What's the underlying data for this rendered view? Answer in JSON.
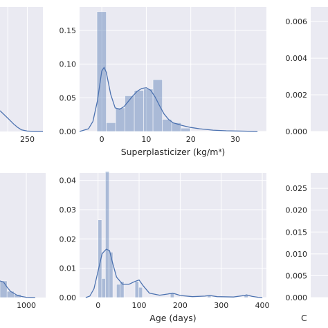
{
  "chart_data": [
    {
      "type": "histogram-kde",
      "panel": "top-left (cropped)",
      "xlabel": "",
      "ylabel": "",
      "xlim": [
        180,
        290
      ],
      "ylim": [
        0,
        0.015
      ],
      "xticks": [
        {
          "value": 250,
          "label": "250"
        }
      ],
      "yticks": [],
      "bins": [],
      "kde": [
        [
          180,
          0.0025
        ],
        [
          200,
          0.0016
        ],
        [
          215,
          0.0009
        ],
        [
          225,
          0.0005
        ],
        [
          235,
          0.0002
        ],
        [
          250,
          5e-05
        ],
        [
          270,
          0.0
        ],
        [
          290,
          0.0
        ]
      ]
    },
    {
      "type": "histogram-kde",
      "panel": "top-center",
      "xlabel": "Superplasticizer (kg/m³)",
      "ylabel": "",
      "xlim": [
        -5,
        37
      ],
      "ylim": [
        0,
        0.185
      ],
      "xticks": [
        {
          "value": 0,
          "label": "0"
        },
        {
          "value": 10,
          "label": "10"
        },
        {
          "value": 20,
          "label": "20"
        },
        {
          "value": 30,
          "label": "30"
        }
      ],
      "yticks": [
        {
          "value": 0.0,
          "label": "0.00"
        },
        {
          "value": 0.05,
          "label": "0.05"
        },
        {
          "value": 0.1,
          "label": "0.10"
        },
        {
          "value": 0.15,
          "label": "0.15"
        }
      ],
      "bins": [
        {
          "x0": -1.1,
          "x1": 1.0,
          "y": 0.178
        },
        {
          "x0": 1.0,
          "x1": 3.1,
          "y": 0.013
        },
        {
          "x0": 3.1,
          "x1": 5.2,
          "y": 0.035
        },
        {
          "x0": 5.2,
          "x1": 7.3,
          "y": 0.053
        },
        {
          "x0": 7.3,
          "x1": 9.4,
          "y": 0.061
        },
        {
          "x0": 9.4,
          "x1": 11.5,
          "y": 0.063
        },
        {
          "x0": 11.5,
          "x1": 13.6,
          "y": 0.077
        },
        {
          "x0": 13.6,
          "x1": 15.7,
          "y": 0.018
        },
        {
          "x0": 15.7,
          "x1": 17.8,
          "y": 0.013
        },
        {
          "x0": 17.8,
          "x1": 19.9,
          "y": 0.005
        }
      ],
      "kde": [
        [
          -5,
          0.0
        ],
        [
          -3,
          0.004
        ],
        [
          -2,
          0.015
        ],
        [
          -1,
          0.045
        ],
        [
          0,
          0.09
        ],
        [
          0.5,
          0.095
        ],
        [
          1,
          0.088
        ],
        [
          2,
          0.055
        ],
        [
          3,
          0.035
        ],
        [
          4,
          0.033
        ],
        [
          5,
          0.037
        ],
        [
          6,
          0.045
        ],
        [
          7,
          0.053
        ],
        [
          8,
          0.06
        ],
        [
          9,
          0.064
        ],
        [
          10,
          0.065
        ],
        [
          11,
          0.061
        ],
        [
          12,
          0.051
        ],
        [
          13,
          0.038
        ],
        [
          14,
          0.026
        ],
        [
          15,
          0.018
        ],
        [
          16,
          0.013
        ],
        [
          18,
          0.009
        ],
        [
          20,
          0.006
        ],
        [
          22,
          0.004
        ],
        [
          25,
          0.002
        ],
        [
          28,
          0.001
        ],
        [
          32,
          0.0005
        ],
        [
          35,
          0.0
        ]
      ]
    },
    {
      "type": "histogram-kde",
      "panel": "top-right (cropped)",
      "xlabel": "",
      "ylabel": "",
      "xlim": [
        0,
        100
      ],
      "ylim": [
        0,
        0.0068
      ],
      "xticks": [],
      "yticks": [
        {
          "value": 0.0,
          "label": "0.000"
        },
        {
          "value": 0.002,
          "label": "0.002"
        },
        {
          "value": 0.004,
          "label": "0.004"
        },
        {
          "value": 0.006,
          "label": "0.006"
        }
      ],
      "bins": [],
      "kde": []
    },
    {
      "type": "histogram-kde",
      "panel": "bottom-left (cropped)",
      "xlabel": "",
      "ylabel": "",
      "xlim": [
        700,
        1220
      ],
      "ylim": [
        0,
        0.012
      ],
      "xticks": [
        {
          "value": 1000,
          "label": "1000"
        }
      ],
      "yticks": [],
      "bins": [
        {
          "x0": 700,
          "x1": 780,
          "y": 0.0016
        },
        {
          "x0": 780,
          "x1": 860,
          "y": 0.0006
        },
        {
          "x0": 860,
          "x1": 940,
          "y": 0.0003
        }
      ],
      "kde": [
        [
          700,
          0.0016
        ],
        [
          740,
          0.0015
        ],
        [
          780,
          0.001
        ],
        [
          820,
          0.0006
        ],
        [
          860,
          0.0004
        ],
        [
          900,
          0.0002
        ],
        [
          950,
          0.0001
        ],
        [
          1000,
          3e-05
        ],
        [
          1100,
          0.0
        ]
      ]
    },
    {
      "type": "histogram-kde",
      "panel": "bottom-center",
      "xlabel": "Age (days)",
      "ylabel": "",
      "xlim": [
        -45,
        410
      ],
      "ylim": [
        0,
        0.0425
      ],
      "xticks": [
        {
          "value": 0,
          "label": "0"
        },
        {
          "value": 100,
          "label": "100"
        },
        {
          "value": 200,
          "label": "200"
        },
        {
          "value": 300,
          "label": "300"
        },
        {
          "value": 400,
          "label": "400"
        }
      ],
      "yticks": [
        {
          "value": 0.0,
          "label": "0.00"
        },
        {
          "value": 0.01,
          "label": "0.01"
        },
        {
          "value": 0.02,
          "label": "0.02"
        },
        {
          "value": 0.03,
          "label": "0.03"
        },
        {
          "value": 0.04,
          "label": "0.04"
        }
      ],
      "bins": [
        {
          "x0": 0,
          "x1": 9,
          "y": 0.0265
        },
        {
          "x0": 9,
          "x1": 18,
          "y": 0.0065
        },
        {
          "x0": 18,
          "x1": 27,
          "y": 0.043
        },
        {
          "x0": 27,
          "x1": 36,
          "y": 0.0155
        },
        {
          "x0": 45,
          "x1": 54,
          "y": 0.0045
        },
        {
          "x0": 54,
          "x1": 63,
          "y": 0.0055
        },
        {
          "x0": 90,
          "x1": 99,
          "y": 0.0055
        },
        {
          "x0": 99,
          "x1": 108,
          "y": 0.0035
        },
        {
          "x0": 176,
          "x1": 185,
          "y": 0.0017
        },
        {
          "x0": 266,
          "x1": 275,
          "y": 0.0007
        },
        {
          "x0": 356,
          "x1": 365,
          "y": 0.001
        }
      ],
      "kde": [
        [
          -30,
          0.0
        ],
        [
          -20,
          0.0005
        ],
        [
          -10,
          0.003
        ],
        [
          0,
          0.009
        ],
        [
          10,
          0.015
        ],
        [
          20,
          0.0165
        ],
        [
          28,
          0.016
        ],
        [
          35,
          0.012
        ],
        [
          45,
          0.007
        ],
        [
          60,
          0.0045
        ],
        [
          75,
          0.0045
        ],
        [
          90,
          0.0055
        ],
        [
          100,
          0.006
        ],
        [
          110,
          0.004
        ],
        [
          125,
          0.0015
        ],
        [
          150,
          0.0008
        ],
        [
          170,
          0.0012
        ],
        [
          182,
          0.0015
        ],
        [
          200,
          0.0007
        ],
        [
          230,
          0.0003
        ],
        [
          260,
          0.0005
        ],
        [
          272,
          0.0007
        ],
        [
          290,
          0.0003
        ],
        [
          330,
          0.0002
        ],
        [
          350,
          0.0006
        ],
        [
          362,
          0.0009
        ],
        [
          375,
          0.0004
        ],
        [
          390,
          0.0001
        ],
        [
          400,
          0.0
        ]
      ]
    },
    {
      "type": "histogram-kde",
      "panel": "bottom-right (cropped)",
      "xlabel": "C",
      "ylabel": "",
      "xlim": [
        0,
        100
      ],
      "ylim": [
        0,
        0.0285
      ],
      "xticks": [],
      "yticks": [
        {
          "value": 0.0,
          "label": "0.000"
        },
        {
          "value": 0.005,
          "label": "0.005"
        },
        {
          "value": 0.01,
          "label": "0.010"
        },
        {
          "value": 0.015,
          "label": "0.015"
        },
        {
          "value": 0.02,
          "label": "0.020"
        },
        {
          "value": 0.025,
          "label": "0.025"
        }
      ],
      "bins": [],
      "kde": []
    }
  ]
}
